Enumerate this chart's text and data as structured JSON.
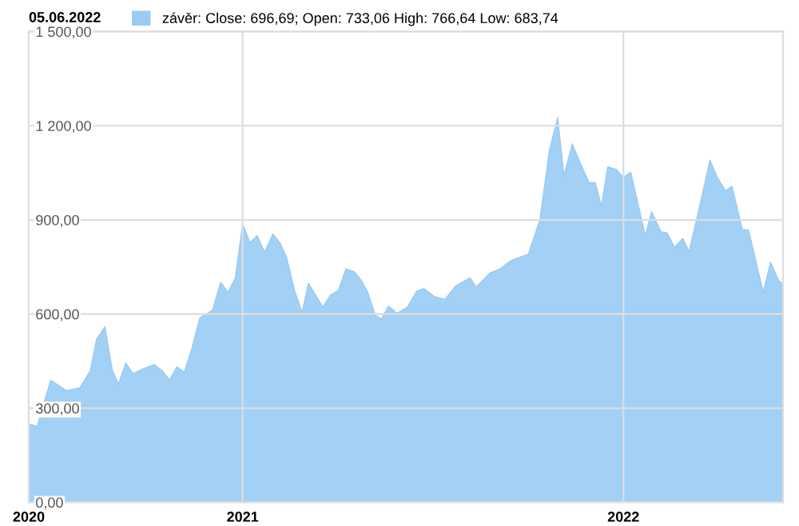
{
  "chart_data": {
    "type": "area",
    "title": "05.06.2022",
    "x": [
      "2020-06-10",
      "2020-06-18",
      "2020-07-01",
      "2020-07-16",
      "2020-07-29",
      "2020-08-08",
      "2020-08-14",
      "2020-08-22",
      "2020-08-29",
      "2020-09-04",
      "2020-09-11",
      "2020-09-18",
      "2020-09-29",
      "2020-10-08",
      "2020-10-16",
      "2020-10-23",
      "2020-10-30",
      "2020-11-06",
      "2020-11-13",
      "2020-11-21",
      "2020-12-03",
      "2020-12-11",
      "2020-12-18",
      "2020-12-25",
      "2021-01-01",
      "2021-01-08",
      "2021-01-15",
      "2021-01-22",
      "2021-01-30",
      "2021-02-06",
      "2021-02-12",
      "2021-02-20",
      "2021-02-27",
      "2021-03-05",
      "2021-03-19",
      "2021-03-26",
      "2021-04-03",
      "2021-04-10",
      "2021-04-18",
      "2021-04-25",
      "2021-05-01",
      "2021-05-08",
      "2021-05-14",
      "2021-05-21",
      "2021-05-29",
      "2021-06-08",
      "2021-06-17",
      "2021-06-24",
      "2021-07-04",
      "2021-07-14",
      "2021-07-24",
      "2021-08-07",
      "2021-08-13",
      "2021-08-26",
      "2021-09-05",
      "2021-09-15",
      "2021-09-22",
      "2021-10-02",
      "2021-10-13",
      "2021-10-22",
      "2021-10-30",
      "2021-11-05",
      "2021-11-13",
      "2021-11-21",
      "2021-11-29",
      "2021-12-05",
      "2021-12-11",
      "2021-12-17",
      "2021-12-25",
      "2022-01-01",
      "2022-01-08",
      "2022-01-22",
      "2022-01-28",
      "2022-02-06",
      "2022-02-12",
      "2022-02-19",
      "2022-02-27",
      "2022-03-05",
      "2022-03-15",
      "2022-03-25",
      "2022-04-01",
      "2022-04-09",
      "2022-04-15",
      "2022-04-25",
      "2022-05-01",
      "2022-05-15",
      "2022-05-22",
      "2022-05-30",
      "2022-06-03"
    ],
    "series": [
      {
        "name": "závěr: Close: 696,69; Open: 733,06 High: 766,64 Low: 683,74",
        "color": "#99cbf4",
        "values": [
          250,
          242,
          389,
          356,
          365,
          419,
          520,
          559,
          422,
          377,
          444,
          410,
          427,
          439,
          419,
          390,
          432,
          415,
          486,
          588,
          612,
          701,
          669,
          715,
          887,
          828,
          850,
          797,
          855,
          825,
          782,
          673,
          605,
          698,
          622,
          660,
          676,
          744,
          735,
          706,
          669,
          597,
          584,
          625,
          602,
          622,
          673,
          681,
          655,
          647,
          689,
          715,
          686,
          731,
          744,
          770,
          779,
          791,
          901,
          1120,
          1226,
          1041,
          1142,
          1078,
          1019,
          1019,
          943,
          1069,
          1061,
          1035,
          1052,
          850,
          926,
          862,
          858,
          812,
          841,
          799,
          943,
          1090,
          1035,
          993,
          1007,
          870,
          867,
          669,
          765,
          706,
          697
        ]
      }
    ],
    "xlim": [
      "2020-06-10",
      "2022-06-03"
    ],
    "xticks": [
      {
        "value": "2020-06-10",
        "label": "2020"
      },
      {
        "value": "2021-01-01",
        "label": "2021"
      },
      {
        "value": "2022-01-01",
        "label": "2022"
      }
    ],
    "ylim": [
      0,
      1500
    ],
    "yticks": [
      {
        "value": 0,
        "label": "0,00"
      },
      {
        "value": 300,
        "label": "300,00"
      },
      {
        "value": 600,
        "label": "600,00"
      },
      {
        "value": 900,
        "label": "900,00"
      },
      {
        "value": 1200,
        "label": "1 200,00"
      },
      {
        "value": 1500,
        "label": "1 500,00"
      }
    ],
    "grid": true,
    "legend": "top left"
  }
}
